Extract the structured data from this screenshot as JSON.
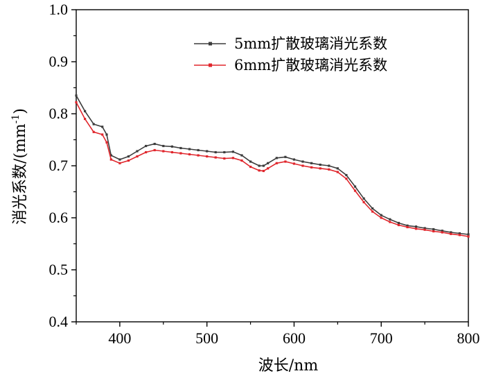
{
  "chart_data": {
    "type": "line",
    "title": "",
    "xlabel": "波长/nm",
    "ylabel": "消光系数/(mm",
    "ylabel_sup": "-1",
    "ylabel_tail": ")",
    "xlim": [
      350,
      800
    ],
    "ylim": [
      0.4,
      1.0
    ],
    "x_ticks": [
      400,
      500,
      600,
      700,
      800
    ],
    "y_ticks": [
      0.4,
      0.5,
      0.6,
      0.7,
      0.8,
      0.9,
      1.0
    ],
    "x_tick_labels": [
      "400",
      "500",
      "600",
      "700",
      "800"
    ],
    "y_tick_labels": [
      "0.4",
      "0.5",
      "0.6",
      "0.7",
      "0.8",
      "0.9",
      "1.0"
    ],
    "grid": false,
    "legend_position": "top-right",
    "x": [
      350,
      360,
      370,
      380,
      385,
      390,
      400,
      410,
      420,
      430,
      440,
      450,
      460,
      470,
      480,
      490,
      500,
      510,
      520,
      530,
      540,
      550,
      560,
      565,
      570,
      580,
      590,
      600,
      610,
      620,
      630,
      640,
      650,
      660,
      670,
      680,
      690,
      700,
      710,
      720,
      730,
      740,
      750,
      760,
      770,
      780,
      790,
      800
    ],
    "series": [
      {
        "name": "5mm扩散玻璃消光系数",
        "color": "#3c3c3c",
        "values": [
          0.835,
          0.805,
          0.78,
          0.775,
          0.76,
          0.72,
          0.712,
          0.718,
          0.728,
          0.738,
          0.742,
          0.738,
          0.737,
          0.734,
          0.732,
          0.73,
          0.728,
          0.726,
          0.726,
          0.727,
          0.72,
          0.708,
          0.7,
          0.7,
          0.705,
          0.715,
          0.717,
          0.712,
          0.708,
          0.705,
          0.702,
          0.7,
          0.695,
          0.682,
          0.66,
          0.637,
          0.618,
          0.605,
          0.597,
          0.59,
          0.585,
          0.583,
          0.58,
          0.578,
          0.575,
          0.572,
          0.57,
          0.568
        ]
      },
      {
        "name": "6mm扩散玻璃消光系数",
        "color": "#e0262c",
        "values": [
          0.822,
          0.79,
          0.765,
          0.76,
          0.745,
          0.712,
          0.705,
          0.71,
          0.718,
          0.726,
          0.73,
          0.728,
          0.726,
          0.724,
          0.722,
          0.72,
          0.718,
          0.716,
          0.714,
          0.715,
          0.71,
          0.698,
          0.691,
          0.69,
          0.695,
          0.705,
          0.708,
          0.704,
          0.7,
          0.697,
          0.695,
          0.693,
          0.688,
          0.675,
          0.652,
          0.63,
          0.612,
          0.6,
          0.592,
          0.586,
          0.582,
          0.579,
          0.577,
          0.574,
          0.572,
          0.569,
          0.567,
          0.564
        ]
      }
    ]
  }
}
